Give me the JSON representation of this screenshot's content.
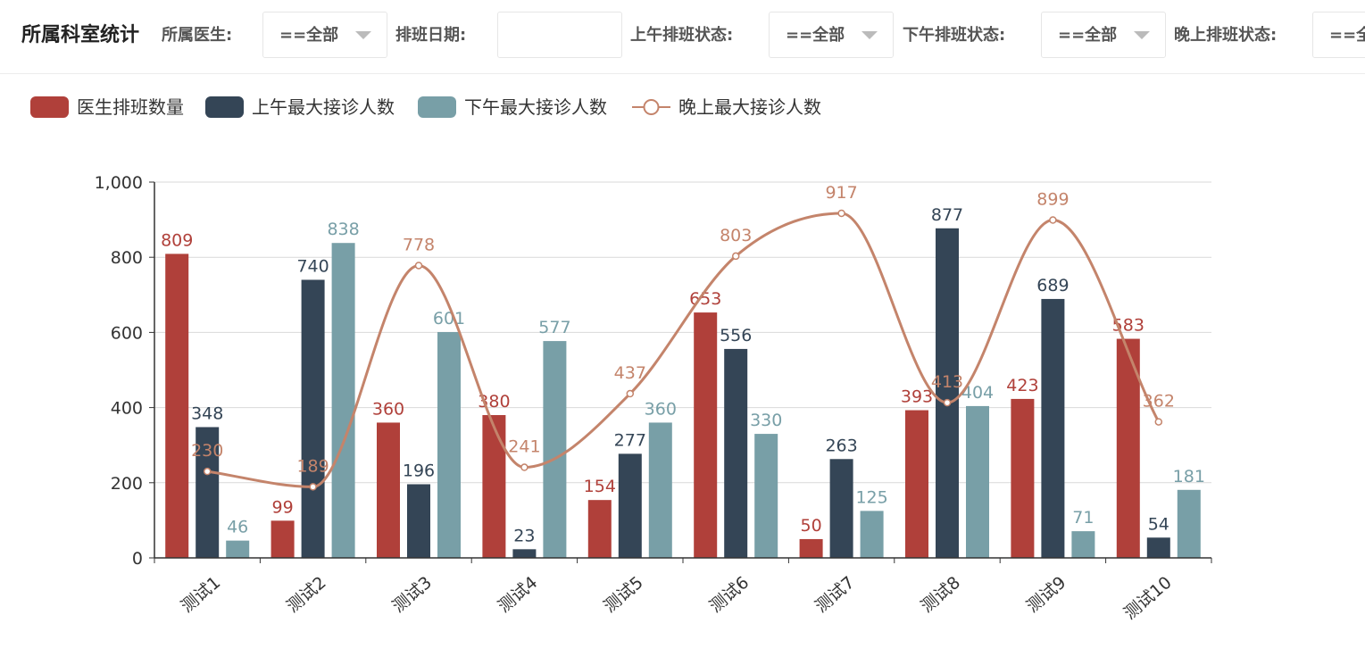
{
  "header": {
    "title": "所属科室统计",
    "filters": [
      {
        "label": "所属医生:",
        "value": "==全部"
      },
      {
        "label": "排班日期:",
        "value": ""
      },
      {
        "label": "上午排班状态:",
        "value": "==全部"
      },
      {
        "label": "下午排班状态:",
        "value": "==全部"
      },
      {
        "label": "晚上排班状态:",
        "value": "==全部"
      }
    ]
  },
  "colors": {
    "series1": "#b0403a",
    "series2": "#344556",
    "series3": "#789fa7",
    "series4": "#c4846b",
    "axis": "#333333",
    "grid": "#d9d9d9"
  },
  "chart_data": {
    "type": "bar",
    "categories": [
      "测试1",
      "测试2",
      "测试3",
      "测试4",
      "测试5",
      "测试6",
      "测试7",
      "测试8",
      "测试9",
      "测试10"
    ],
    "series": [
      {
        "name": "医生排班数量",
        "type": "bar",
        "values": [
          809,
          99,
          360,
          380,
          154,
          653,
          50,
          393,
          423,
          583
        ]
      },
      {
        "name": "上午最大接诊人数",
        "type": "bar",
        "values": [
          348,
          740,
          196,
          23,
          277,
          556,
          263,
          877,
          689,
          54
        ]
      },
      {
        "name": "下午最大接诊人数",
        "type": "bar",
        "values": [
          46,
          838,
          601,
          577,
          360,
          330,
          125,
          404,
          71,
          181
        ]
      },
      {
        "name": "晚上最大接诊人数",
        "type": "line",
        "smooth": true,
        "values": [
          230,
          189,
          778,
          241,
          437,
          803,
          917,
          413,
          899,
          362
        ]
      }
    ],
    "yticks": [
      "0",
      "200",
      "400",
      "600",
      "800",
      "1,000"
    ],
    "ylim": [
      0,
      1000
    ],
    "legend_position": "top-left",
    "grid": true
  }
}
